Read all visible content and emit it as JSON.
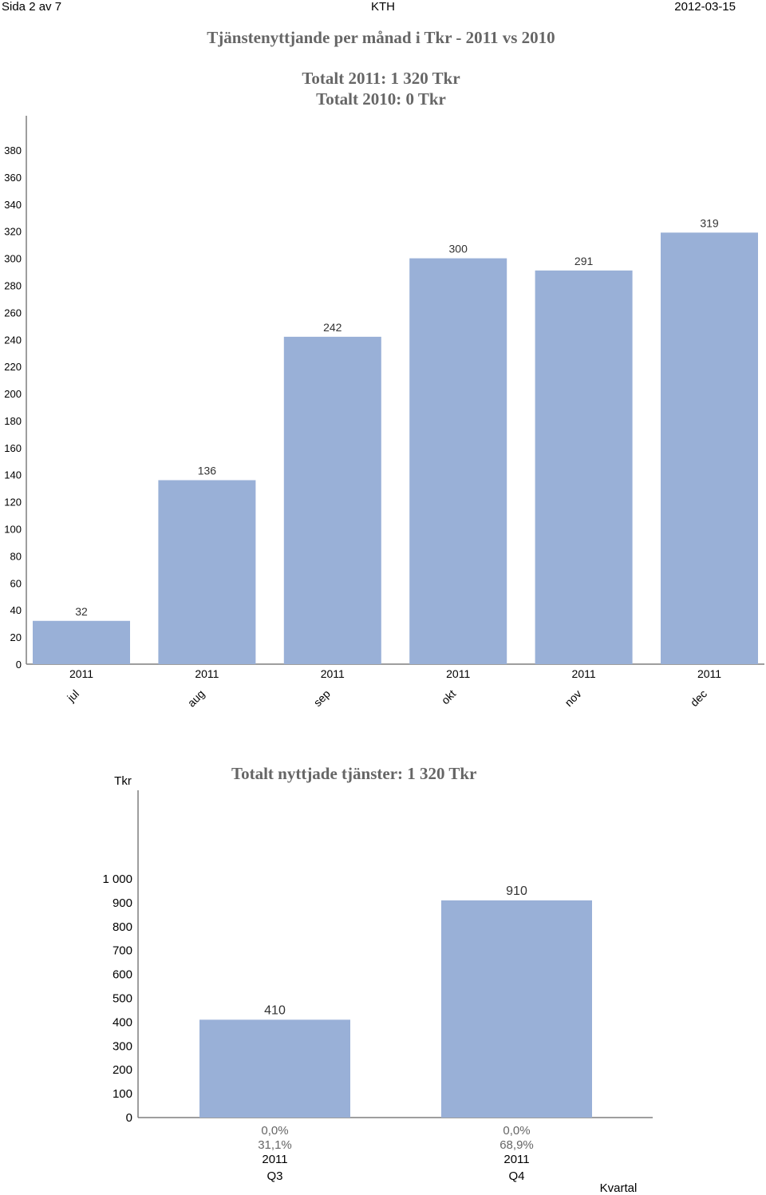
{
  "header": {
    "page": "Sida 2 av 7",
    "org": "KTH",
    "date": "2012-03-15"
  },
  "colors": {
    "bar": "#99b0d7",
    "axis": "#7f7f7f",
    "title": "#666666",
    "percent": "#666666"
  },
  "chart_data": [
    {
      "type": "bar",
      "title": "Tjänstenyttjande per månad i Tkr  - 2011 vs 2010",
      "subtitles": [
        "Totalt 2011: 1 320 Tkr",
        "Totalt 2010: 0 Tkr"
      ],
      "categories": [
        {
          "year": "2011",
          "month": "jul"
        },
        {
          "year": "2011",
          "month": "aug"
        },
        {
          "year": "2011",
          "month": "sep"
        },
        {
          "year": "2011",
          "month": "okt"
        },
        {
          "year": "2011",
          "month": "nov"
        },
        {
          "year": "2011",
          "month": "dec"
        }
      ],
      "values": [
        32,
        136,
        242,
        300,
        291,
        319
      ],
      "value_labels": [
        "32",
        "136",
        "242",
        "300",
        "291",
        "319"
      ],
      "ylim": [
        0,
        380
      ],
      "yticks": [
        0,
        20,
        40,
        60,
        80,
        100,
        120,
        140,
        160,
        180,
        200,
        220,
        240,
        260,
        280,
        300,
        320,
        340,
        360,
        380
      ],
      "ytick_labels": [
        "0",
        "20",
        "40",
        "60",
        "80",
        "100",
        "120",
        "140",
        "160",
        "180",
        "200",
        "220",
        "240",
        "260",
        "280",
        "300",
        "320",
        "340",
        "360",
        "380"
      ],
      "grid": false
    },
    {
      "type": "bar",
      "title": "Totalt nyttjade tjänster:  1 320 Tkr",
      "ylabel": "Tkr",
      "xlabel": "Kvartal",
      "categories": [
        {
          "pct_a": "0,0%",
          "pct_b": "31,1%",
          "year": "2011",
          "quarter": "Q3"
        },
        {
          "pct_a": "0,0%",
          "pct_b": "68,9%",
          "year": "2011",
          "quarter": "Q4"
        }
      ],
      "values": [
        410,
        910
      ],
      "value_labels": [
        "410",
        "910"
      ],
      "ylim": [
        0,
        1000
      ],
      "yticks": [
        0,
        100,
        200,
        300,
        400,
        500,
        600,
        700,
        800,
        900,
        1000
      ],
      "ytick_labels": [
        "0",
        "100",
        "200",
        "300",
        "400",
        "500",
        "600",
        "700",
        "800",
        "900",
        "1 000"
      ],
      "grid": false
    }
  ]
}
